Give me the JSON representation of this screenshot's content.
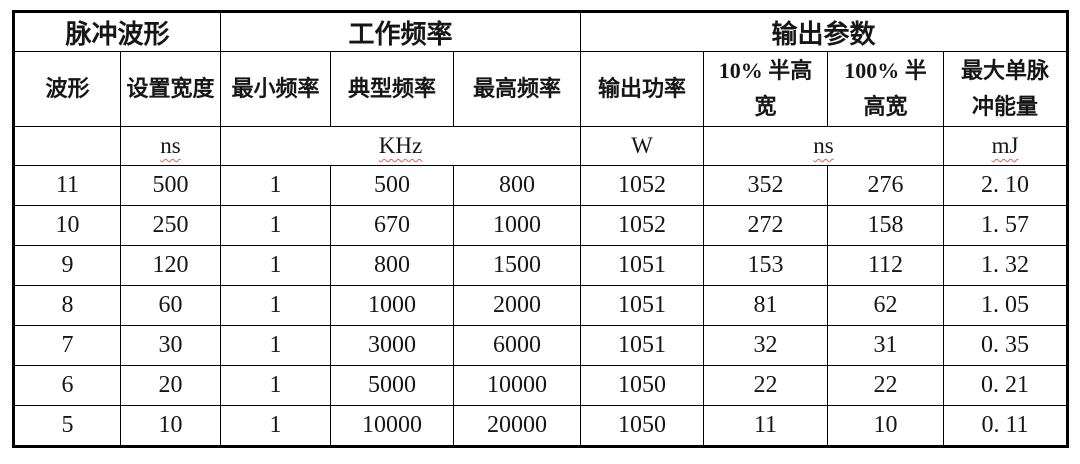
{
  "colors": {
    "background": "#ffffff",
    "border": "#000000",
    "text": "#161616",
    "spellcheck_underline": "#e85c5c"
  },
  "table": {
    "group_headers": [
      {
        "label": "脉冲波形",
        "span": 2
      },
      {
        "label": "工作频率",
        "span": 3
      },
      {
        "label": "输出参数",
        "span": 4
      }
    ],
    "column_headers": [
      {
        "label": "波形",
        "lines": [
          "波形"
        ]
      },
      {
        "label": "设置宽度",
        "lines": [
          "设置宽度"
        ]
      },
      {
        "label": "最小频率",
        "lines": [
          "最小频率"
        ]
      },
      {
        "label": "典型频率",
        "lines": [
          "典型频率"
        ]
      },
      {
        "label": "最高频率",
        "lines": [
          "最高频率"
        ]
      },
      {
        "label": "输出功率",
        "lines": [
          "输出功率"
        ]
      },
      {
        "label": "10% 半高宽",
        "lines": [
          "10% 半高",
          "宽"
        ]
      },
      {
        "label": "100% 半高宽",
        "lines": [
          "100% 半",
          "高宽"
        ]
      },
      {
        "label": "最大单脉冲能量",
        "lines": [
          "最大单脉",
          "冲能量"
        ]
      }
    ],
    "units": [
      {
        "text": "",
        "span": 1,
        "misspelled": false
      },
      {
        "text": "ns",
        "span": 1,
        "misspelled": true
      },
      {
        "text": "KHz",
        "span": 3,
        "misspelled": true
      },
      {
        "text": "W",
        "span": 1,
        "misspelled": false
      },
      {
        "text": "ns",
        "span": 2,
        "misspelled": true
      },
      {
        "text": "mJ",
        "span": 1,
        "misspelled": true
      }
    ],
    "rows": [
      [
        "11",
        "500",
        "1",
        "500",
        "800",
        "1052",
        "352",
        "276",
        "2. 10"
      ],
      [
        "10",
        "250",
        "1",
        "670",
        "1000",
        "1052",
        "272",
        "158",
        "1. 57"
      ],
      [
        "9",
        "120",
        "1",
        "800",
        "1500",
        "1051",
        "153",
        "112",
        "1. 32"
      ],
      [
        "8",
        "60",
        "1",
        "1000",
        "2000",
        "1051",
        "81",
        "62",
        "1. 05"
      ],
      [
        "7",
        "30",
        "1",
        "3000",
        "6000",
        "1051",
        "32",
        "31",
        "0. 35"
      ],
      [
        "6",
        "20",
        "1",
        "5000",
        "10000",
        "1050",
        "22",
        "22",
        "0. 21"
      ],
      [
        "5",
        "10",
        "1",
        "10000",
        "20000",
        "1050",
        "11",
        "10",
        "0. 11"
      ]
    ]
  }
}
